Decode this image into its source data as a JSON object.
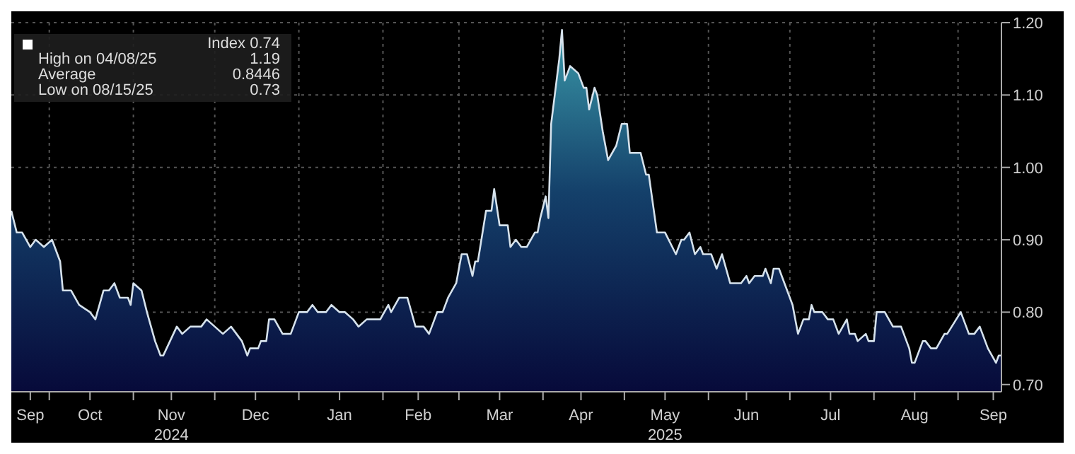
{
  "chart_data": {
    "type": "area",
    "annotations": [
      "Index 0.74",
      "High on 04/08/25 1.19",
      "Average 0.8446",
      "Low on 08/15/25 0.73"
    ],
    "x": [
      "2024-09-17",
      "2024-09-19",
      "2024-09-21",
      "2024-09-24",
      "2024-09-26",
      "2024-09-29",
      "2024-10-02",
      "2024-10-05",
      "2024-10-06",
      "2024-10-09",
      "2024-10-12",
      "2024-10-16",
      "2024-10-18",
      "2024-10-21",
      "2024-10-23",
      "2024-10-25",
      "2024-10-27",
      "2024-10-30",
      "2024-10-31",
      "2024-11-01",
      "2024-11-04",
      "2024-11-06",
      "2024-11-09",
      "2024-11-11",
      "2024-11-12",
      "2024-11-17",
      "2024-11-19",
      "2024-11-22",
      "2024-11-26",
      "2024-11-28",
      "2024-12-01",
      "2024-12-04",
      "2024-12-07",
      "2024-12-09",
      "2024-12-11",
      "2024-12-13",
      "2024-12-14",
      "2024-12-17",
      "2024-12-18",
      "2024-12-20",
      "2024-12-21",
      "2024-12-23",
      "2024-12-26",
      "2024-12-29",
      "2025-01-01",
      "2025-01-04",
      "2025-01-06",
      "2025-01-08",
      "2025-01-11",
      "2025-01-13",
      "2025-01-16",
      "2025-01-18",
      "2025-01-21",
      "2025-01-23",
      "2025-01-26",
      "2025-01-31",
      "2025-02-03",
      "2025-02-04",
      "2025-02-07",
      "2025-02-10",
      "2025-02-13",
      "2025-02-16",
      "2025-02-18",
      "2025-02-21",
      "2025-02-23",
      "2025-02-25",
      "2025-02-28",
      "2025-03-02",
      "2025-03-04",
      "2025-03-06",
      "2025-03-07",
      "2025-03-08",
      "2025-03-11",
      "2025-03-13",
      "2025-03-14",
      "2025-03-16",
      "2025-03-19",
      "2025-03-20",
      "2025-03-22",
      "2025-03-24",
      "2025-03-26",
      "2025-03-29",
      "2025-03-30",
      "2025-03-31",
      "2025-04-02",
      "2025-04-03",
      "2025-04-04",
      "2025-04-07",
      "2025-04-08",
      "2025-04-09",
      "2025-04-11",
      "2025-04-14",
      "2025-04-16",
      "2025-04-17",
      "2025-04-18",
      "2025-04-20",
      "2025-04-21",
      "2025-04-23",
      "2025-04-25",
      "2025-04-28",
      "2025-04-30",
      "2025-05-02",
      "2025-05-03",
      "2025-05-07",
      "2025-05-09",
      "2025-05-10",
      "2025-05-13",
      "2025-05-16",
      "2025-05-20",
      "2025-05-22",
      "2025-05-23",
      "2025-05-25",
      "2025-05-27",
      "2025-05-29",
      "2025-05-30",
      "2025-06-02",
      "2025-06-04",
      "2025-06-06",
      "2025-06-09",
      "2025-06-13",
      "2025-06-15",
      "2025-06-16",
      "2025-06-18",
      "2025-06-21",
      "2025-06-22",
      "2025-06-24",
      "2025-06-25",
      "2025-06-27",
      "2025-06-29",
      "2025-07-01",
      "2025-07-02",
      "2025-07-04",
      "2025-07-06",
      "2025-07-08",
      "2025-07-09",
      "2025-07-10",
      "2025-07-13",
      "2025-07-15",
      "2025-07-17",
      "2025-07-19",
      "2025-07-22",
      "2025-07-23",
      "2025-07-25",
      "2025-07-26",
      "2025-07-29",
      "2025-07-30",
      "2025-08-01",
      "2025-08-02",
      "2025-08-05",
      "2025-08-08",
      "2025-08-11",
      "2025-08-14",
      "2025-08-15",
      "2025-08-16",
      "2025-08-19",
      "2025-08-20",
      "2025-08-22",
      "2025-08-24",
      "2025-08-27",
      "2025-08-28",
      "2025-09-02",
      "2025-09-05",
      "2025-09-07",
      "2025-09-09",
      "2025-09-10",
      "2025-09-12",
      "2025-09-15",
      "2025-09-16",
      "2025-09-17"
    ],
    "series": [
      {
        "color": "#d6e2ec",
        "values": [
          0.94,
          0.91,
          0.91,
          0.89,
          0.9,
          0.89,
          0.9,
          0.87,
          0.83,
          0.83,
          0.81,
          0.8,
          0.79,
          0.83,
          0.83,
          0.84,
          0.82,
          0.82,
          0.81,
          0.84,
          0.83,
          0.8,
          0.76,
          0.74,
          0.74,
          0.78,
          0.77,
          0.78,
          0.78,
          0.79,
          0.78,
          0.77,
          0.78,
          0.77,
          0.76,
          0.74,
          0.75,
          0.75,
          0.76,
          0.76,
          0.79,
          0.79,
          0.77,
          0.77,
          0.8,
          0.8,
          0.81,
          0.8,
          0.8,
          0.81,
          0.8,
          0.8,
          0.79,
          0.78,
          0.79,
          0.79,
          0.81,
          0.8,
          0.82,
          0.82,
          0.78,
          0.78,
          0.77,
          0.8,
          0.8,
          0.82,
          0.84,
          0.88,
          0.88,
          0.85,
          0.87,
          0.87,
          0.94,
          0.94,
          0.97,
          0.92,
          0.92,
          0.89,
          0.9,
          0.89,
          0.89,
          0.91,
          0.91,
          0.93,
          0.96,
          0.93,
          1.06,
          1.15,
          1.19,
          1.12,
          1.14,
          1.13,
          1.11,
          1.11,
          1.08,
          1.11,
          1.1,
          1.05,
          1.01,
          1.03,
          1.06,
          1.06,
          1.02,
          1.02,
          0.99,
          0.99,
          0.91,
          0.91,
          0.88,
          0.9,
          0.9,
          0.91,
          0.88,
          0.89,
          0.88,
          0.88,
          0.86,
          0.88,
          0.84,
          0.84,
          0.85,
          0.84,
          0.85,
          0.85,
          0.86,
          0.84,
          0.86,
          0.86,
          0.84,
          0.82,
          0.81,
          0.77,
          0.79,
          0.79,
          0.81,
          0.8,
          0.8,
          0.79,
          0.79,
          0.77,
          0.79,
          0.77,
          0.77,
          0.76,
          0.77,
          0.76,
          0.76,
          0.8,
          0.8,
          0.78,
          0.78,
          0.75,
          0.73,
          0.73,
          0.76,
          0.76,
          0.75,
          0.75,
          0.77,
          0.77,
          0.8,
          0.77,
          0.77,
          0.78,
          0.77,
          0.75,
          0.73,
          0.74,
          0.74
        ]
      }
    ],
    "xlim": [
      "2024-09-17",
      "2025-09-17"
    ],
    "xticks": [
      {
        "value": "2024-09-24",
        "label": "Sep"
      },
      {
        "value": "2024-10-01",
        "label": null
      },
      {
        "value": "2024-10-16",
        "label": "Oct"
      },
      {
        "value": "2024-11-01",
        "label": null
      },
      {
        "value": "2024-11-15",
        "label": "Nov\n2024"
      },
      {
        "value": "2024-12-01",
        "label": null
      },
      {
        "value": "2024-12-16",
        "label": "Dec"
      },
      {
        "value": "2025-01-01",
        "label": null
      },
      {
        "value": "2025-01-16",
        "label": "Jan"
      },
      {
        "value": "2025-02-01",
        "label": null
      },
      {
        "value": "2025-02-14",
        "label": "Feb"
      },
      {
        "value": "2025-03-01",
        "label": null
      },
      {
        "value": "2025-03-16",
        "label": "Mar"
      },
      {
        "value": "2025-04-01",
        "label": null
      },
      {
        "value": "2025-04-15",
        "label": "Apr"
      },
      {
        "value": "2025-05-01",
        "label": null
      },
      {
        "value": "2025-05-16",
        "label": "May\n2025"
      },
      {
        "value": "2025-06-01",
        "label": null
      },
      {
        "value": "2025-06-15",
        "label": "Jun"
      },
      {
        "value": "2025-07-01",
        "label": null
      },
      {
        "value": "2025-07-16",
        "label": "Jul"
      },
      {
        "value": "2025-08-01",
        "label": null
      },
      {
        "value": "2025-08-16",
        "label": "Aug"
      },
      {
        "value": "2025-09-01",
        "label": null
      },
      {
        "value": "2025-09-14",
        "label": "Sep"
      }
    ],
    "ylim": [
      0.69,
      1.2
    ],
    "yticks": [
      {
        "value": 0.7,
        "label": "0.70"
      },
      {
        "value": 0.8,
        "label": "0.80"
      },
      {
        "value": 0.9,
        "label": "0.90"
      },
      {
        "value": 1.0,
        "label": "1.00"
      },
      {
        "value": 1.1,
        "label": "1.10"
      },
      {
        "value": 1.2,
        "label": "1.20"
      }
    ],
    "grid": true
  }
}
